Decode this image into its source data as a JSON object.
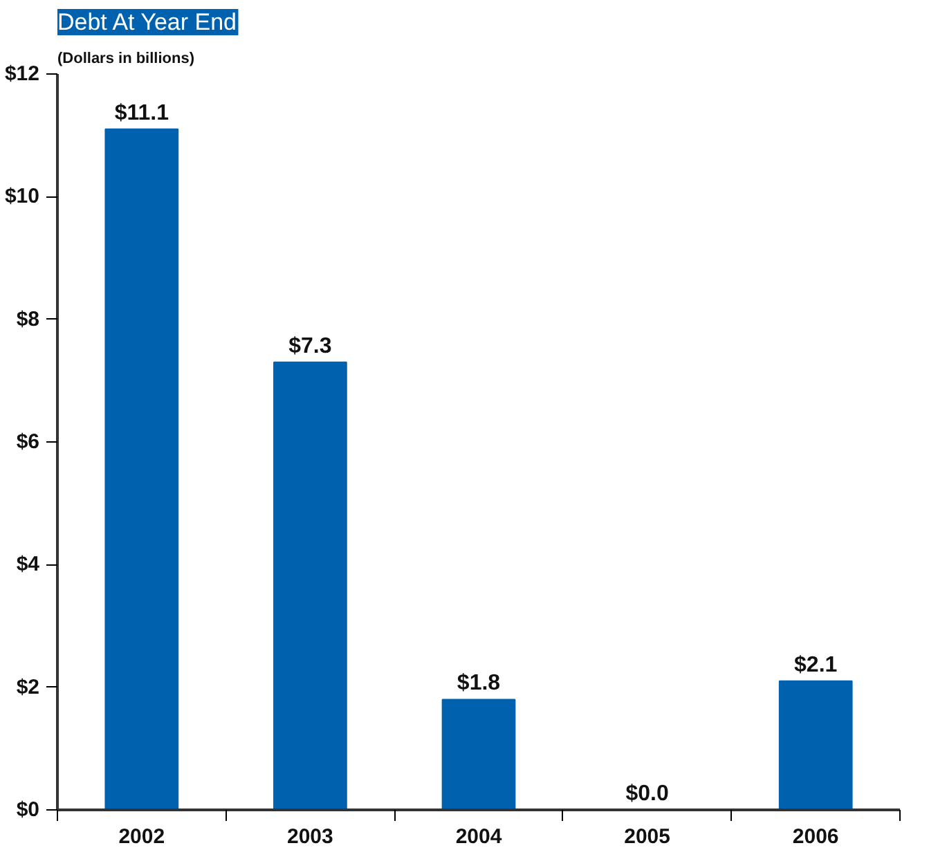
{
  "chart_data": {
    "type": "bar",
    "title": "Debt At Year End",
    "subtitle": "(Dollars in billions)",
    "categories": [
      "2002",
      "2003",
      "2004",
      "2005",
      "2006"
    ],
    "values": [
      11.1,
      7.3,
      1.8,
      0.0,
      2.1
    ],
    "value_labels": [
      "$11.1",
      "$7.3",
      "$1.8",
      "$0.0",
      "$2.1"
    ],
    "color": "#0062ae",
    "ylim": [
      0,
      12
    ],
    "yticks": [
      {
        "value": 0,
        "label": "$0"
      },
      {
        "value": 2,
        "label": "$2"
      },
      {
        "value": 4,
        "label": "$4"
      },
      {
        "value": 6,
        "label": "$6"
      },
      {
        "value": 8,
        "label": "$8"
      },
      {
        "value": 10,
        "label": "$10"
      },
      {
        "value": 12,
        "label": "$12"
      }
    ],
    "grid": false
  }
}
